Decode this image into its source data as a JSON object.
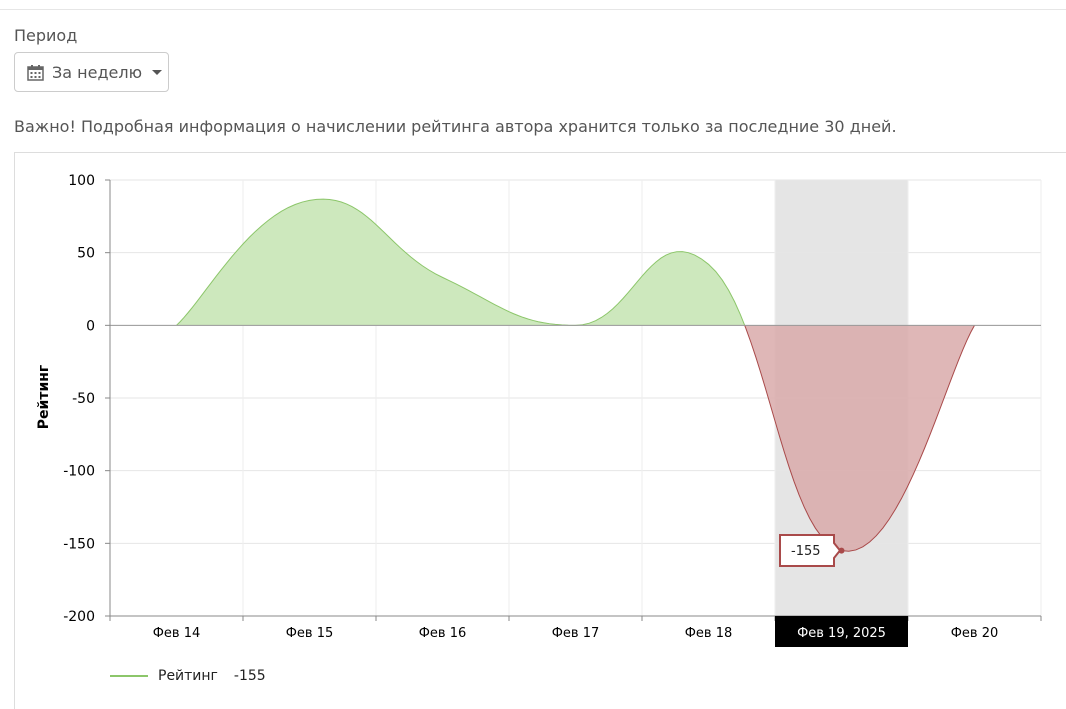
{
  "filter": {
    "label": "Период",
    "selected": "За неделю",
    "icon": "calendar-icon"
  },
  "notice": "Важно! Подробная информация о начислении рейтинга автора хранится только за последние 30 дней.",
  "chart_data": {
    "type": "area",
    "title": "",
    "ylabel": "Рейтинг",
    "xlabel": "",
    "categories": [
      "Фев 14",
      "Фев 15",
      "Фев 16",
      "Фев 17",
      "Фев 18",
      "Фев 19",
      "Фев 20"
    ],
    "highlight_label": "Фев 19, 2025",
    "ylim": [
      -200,
      100
    ],
    "yticks": [
      100,
      50,
      0,
      -50,
      -100,
      -150,
      -200
    ],
    "series": [
      {
        "name": "Рейтинг",
        "values": [
          0,
          86,
          33,
          0,
          42,
          -155,
          0
        ]
      }
    ],
    "tooltip": {
      "category": "Фев 19",
      "value": "-155"
    },
    "legend": {
      "position": "bottom-left",
      "name": "Рейтинг",
      "value": "-155"
    },
    "grid": true,
    "colors": {
      "positive_line": "#8cc66a",
      "positive_fill": "#cde8bd",
      "negative_line": "#a94a4a",
      "negative_fill": "#d9aaaa",
      "highlight_band": "#e5e5e5",
      "tooltip_border": "#a94a4a"
    }
  }
}
